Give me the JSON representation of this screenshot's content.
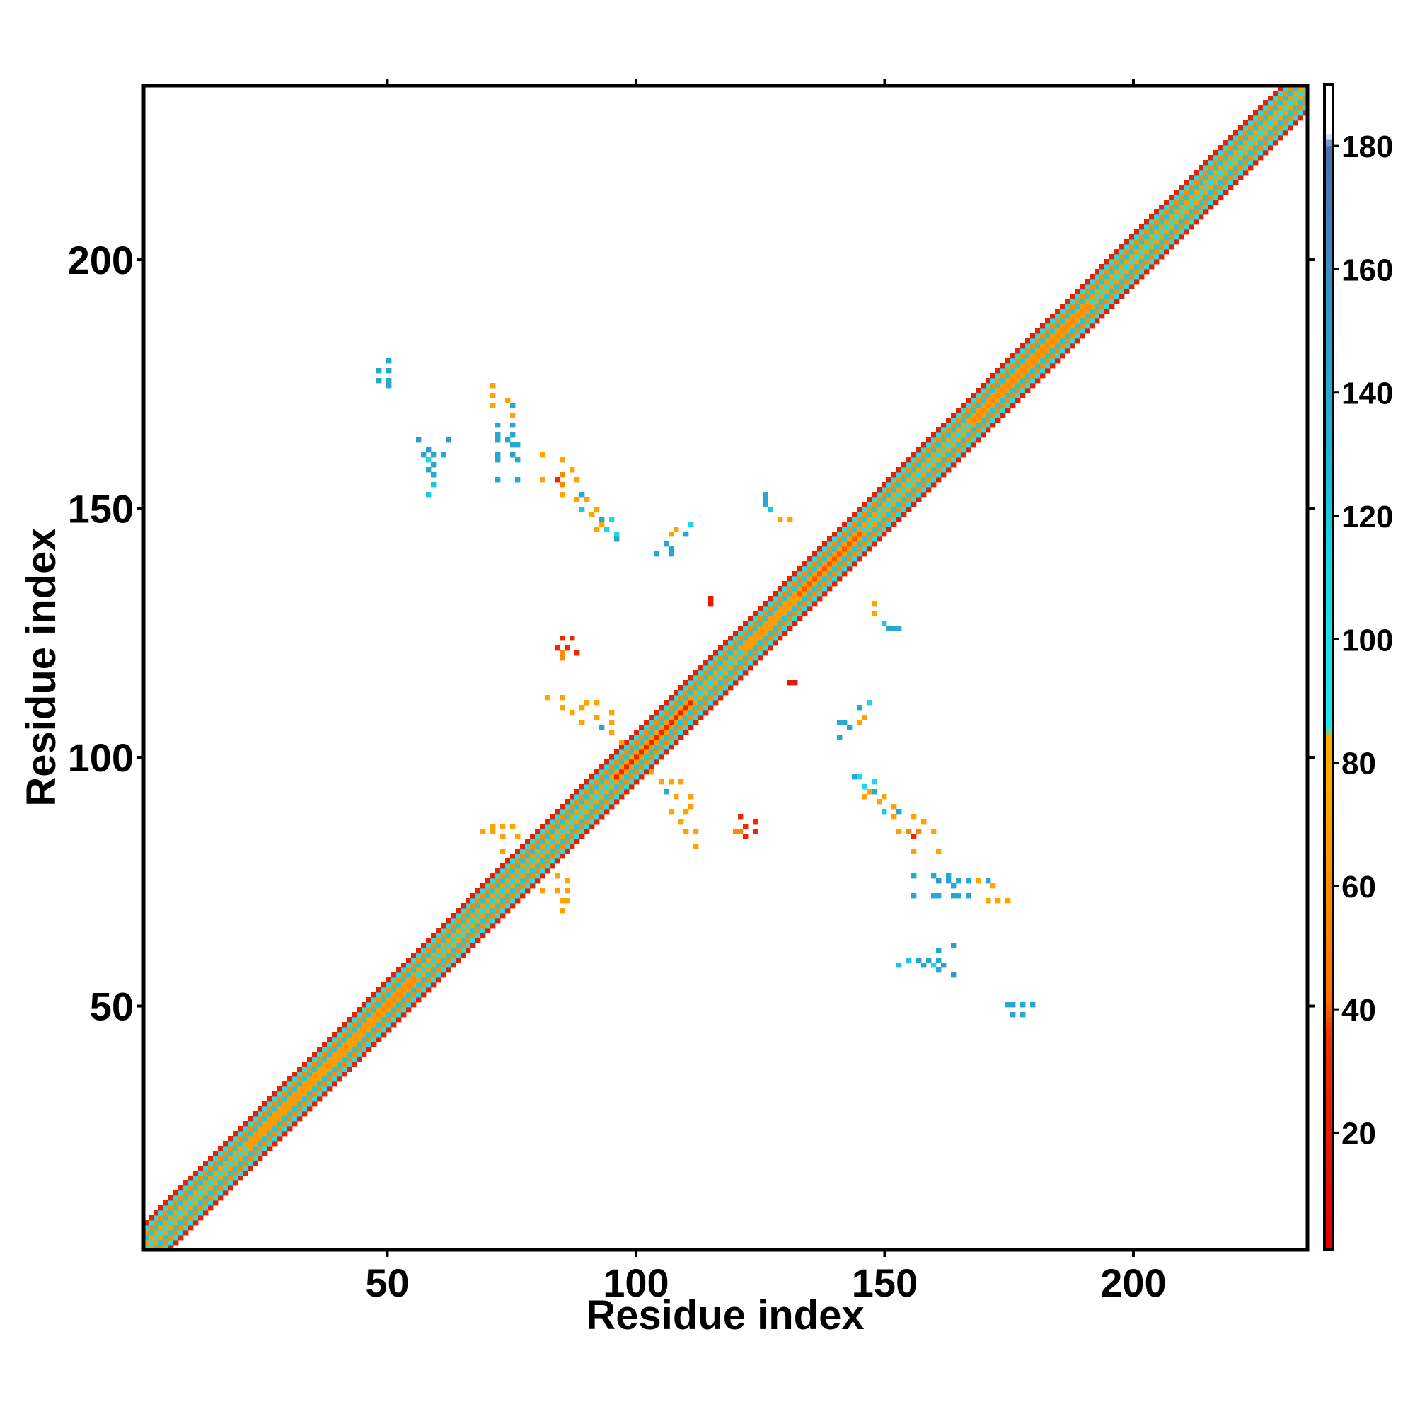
{
  "chart_data": {
    "type": "heatmap",
    "title": "",
    "xlabel": "Residue index",
    "ylabel": "Residue index",
    "xlim": [
      1,
      235
    ],
    "ylim": [
      1,
      235
    ],
    "x_ticks": [
      50,
      100,
      150,
      200
    ],
    "y_ticks": [
      50,
      100,
      150,
      200
    ],
    "grid": false,
    "colorbar": {
      "range": [
        1,
        190
      ],
      "ticks": [
        20,
        40,
        60,
        80,
        100,
        120,
        140,
        160,
        180
      ],
      "stops": [
        {
          "value": 1,
          "color": "#e10000"
        },
        {
          "value": 20,
          "color": "#e31a00"
        },
        {
          "value": 36,
          "color": "#f03000"
        },
        {
          "value": 42,
          "color": "#ff7000"
        },
        {
          "value": 60,
          "color": "#ff8a00"
        },
        {
          "value": 72,
          "color": "#ffa000"
        },
        {
          "value": 84,
          "color": "#ffab00"
        },
        {
          "value": 86,
          "color": "#22e4f0"
        },
        {
          "value": 112,
          "color": "#1ad6e8"
        },
        {
          "value": 130,
          "color": "#20b4d4"
        },
        {
          "value": 150,
          "color": "#2e9ccc"
        },
        {
          "value": 165,
          "color": "#3f83c0"
        },
        {
          "value": 180,
          "color": "#4a6fb0"
        },
        {
          "value": 182,
          "color": "#ffffff"
        },
        {
          "value": 190,
          "color": "#ffffff"
        }
      ]
    },
    "diagonal_band": {
      "from": 1,
      "to": 235,
      "profile": [
        {
          "offset": 0,
          "value": 120
        },
        {
          "offset": 1,
          "value": 70
        },
        {
          "offset": 2,
          "value": 120
        },
        {
          "offset": 3,
          "value": 60
        },
        {
          "offset": 4,
          "value": 95
        },
        {
          "offset": 5,
          "value": 25
        }
      ]
    },
    "segment_colors": [
      {
        "from": 1,
        "to": 22,
        "value": 100
      },
      {
        "from": 22,
        "to": 48,
        "value": 70
      },
      {
        "from": 48,
        "to": 56,
        "value": 60
      },
      {
        "from": 56,
        "to": 70,
        "value": 105
      },
      {
        "from": 70,
        "to": 84,
        "value": 110
      },
      {
        "from": 84,
        "to": 96,
        "value": 100
      },
      {
        "from": 96,
        "to": 112,
        "value": 30
      },
      {
        "from": 112,
        "to": 122,
        "value": 105
      },
      {
        "from": 122,
        "to": 133,
        "value": 70
      },
      {
        "from": 133,
        "to": 146,
        "value": 40
      },
      {
        "from": 146,
        "to": 168,
        "value": 100
      },
      {
        "from": 168,
        "to": 192,
        "value": 60
      },
      {
        "from": 192,
        "to": 235,
        "value": 95
      }
    ],
    "off_diagonal_contacts": [
      {
        "x": 48,
        "y": 176,
        "value": 140
      },
      {
        "x": 50,
        "y": 178,
        "value": 140
      },
      {
        "x": 50,
        "y": 175,
        "value": 140
      },
      {
        "x": 57,
        "y": 161,
        "value": 140
      },
      {
        "x": 59,
        "y": 161,
        "value": 140
      },
      {
        "x": 61,
        "y": 161,
        "value": 140
      },
      {
        "x": 58,
        "y": 158,
        "value": 140
      },
      {
        "x": 59,
        "y": 157,
        "value": 160
      },
      {
        "x": 59,
        "y": 155,
        "value": 120
      },
      {
        "x": 58,
        "y": 153,
        "value": 120
      },
      {
        "x": 71,
        "y": 173,
        "value": 75
      },
      {
        "x": 71,
        "y": 171,
        "value": 75
      },
      {
        "x": 75,
        "y": 169,
        "value": 75
      },
      {
        "x": 72,
        "y": 165,
        "value": 140
      },
      {
        "x": 74,
        "y": 164,
        "value": 140
      },
      {
        "x": 75,
        "y": 163,
        "value": 140
      },
      {
        "x": 72,
        "y": 161,
        "value": 140
      },
      {
        "x": 75,
        "y": 161,
        "value": 150
      },
      {
        "x": 72,
        "y": 156,
        "value": 140
      },
      {
        "x": 76,
        "y": 156,
        "value": 140
      },
      {
        "x": 81,
        "y": 156,
        "value": 75
      },
      {
        "x": 84,
        "y": 156,
        "value": 30
      },
      {
        "x": 85,
        "y": 155,
        "value": 60
      },
      {
        "x": 85,
        "y": 153,
        "value": 75
      },
      {
        "x": 88,
        "y": 152,
        "value": 75
      },
      {
        "x": 89,
        "y": 150,
        "value": 120
      },
      {
        "x": 91,
        "y": 149,
        "value": 75
      },
      {
        "x": 93,
        "y": 148,
        "value": 140
      },
      {
        "x": 94,
        "y": 146,
        "value": 110
      },
      {
        "x": 92,
        "y": 146,
        "value": 75
      },
      {
        "x": 96,
        "y": 144,
        "value": 140
      },
      {
        "x": 104,
        "y": 141,
        "value": 140
      },
      {
        "x": 107,
        "y": 141,
        "value": 140
      },
      {
        "x": 107,
        "y": 145,
        "value": 75
      },
      {
        "x": 110,
        "y": 145,
        "value": 140
      },
      {
        "x": 126,
        "y": 152,
        "value": 140
      },
      {
        "x": 127,
        "y": 150,
        "value": 120
      },
      {
        "x": 131,
        "y": 148,
        "value": 75
      },
      {
        "x": 115,
        "y": 131,
        "value": 20
      },
      {
        "x": 132,
        "y": 115,
        "value": 20
      },
      {
        "x": 84,
        "y": 122,
        "value": 30
      },
      {
        "x": 85,
        "y": 120,
        "value": 60
      },
      {
        "x": 88,
        "y": 121,
        "value": 30
      },
      {
        "x": 82,
        "y": 112,
        "value": 75
      },
      {
        "x": 85,
        "y": 112,
        "value": 75
      },
      {
        "x": 85,
        "y": 110,
        "value": 75
      },
      {
        "x": 87,
        "y": 109,
        "value": 75
      },
      {
        "x": 89,
        "y": 110,
        "value": 75
      },
      {
        "x": 89,
        "y": 107,
        "value": 75
      },
      {
        "x": 103,
        "y": 97,
        "value": 75
      },
      {
        "x": 105,
        "y": 95,
        "value": 75
      },
      {
        "x": 107,
        "y": 95,
        "value": 75
      },
      {
        "x": 109,
        "y": 95,
        "value": 75
      },
      {
        "x": 108,
        "y": 92,
        "value": 75
      },
      {
        "x": 111,
        "y": 92,
        "value": 75
      },
      {
        "x": 111,
        "y": 90,
        "value": 75
      },
      {
        "x": 106,
        "y": 93,
        "value": 140
      },
      {
        "x": 122,
        "y": 86,
        "value": 30
      },
      {
        "x": 124,
        "y": 85,
        "value": 30
      },
      {
        "x": 121,
        "y": 85,
        "value": 60
      },
      {
        "x": 124,
        "y": 87,
        "value": 30
      },
      {
        "x": 71,
        "y": 86,
        "value": 75
      },
      {
        "x": 73,
        "y": 86,
        "value": 75
      },
      {
        "x": 75,
        "y": 86,
        "value": 75
      },
      {
        "x": 76,
        "y": 84,
        "value": 75
      },
      {
        "x": 81,
        "y": 73,
        "value": 75
      },
      {
        "x": 84,
        "y": 73,
        "value": 75
      },
      {
        "x": 85,
        "y": 71,
        "value": 75
      },
      {
        "x": 85,
        "y": 69,
        "value": 75
      },
      {
        "x": 148,
        "y": 129,
        "value": 75
      },
      {
        "x": 151,
        "y": 126,
        "value": 140
      },
      {
        "x": 153,
        "y": 126,
        "value": 140
      },
      {
        "x": 142,
        "y": 107,
        "value": 140
      },
      {
        "x": 143,
        "y": 106,
        "value": 140
      },
      {
        "x": 146,
        "y": 108,
        "value": 75
      },
      {
        "x": 147,
        "y": 111,
        "value": 110
      },
      {
        "x": 145,
        "y": 96,
        "value": 110
      },
      {
        "x": 148,
        "y": 95,
        "value": 110
      },
      {
        "x": 147,
        "y": 93,
        "value": 75
      },
      {
        "x": 150,
        "y": 92,
        "value": 75
      },
      {
        "x": 152,
        "y": 90,
        "value": 75
      },
      {
        "x": 153,
        "y": 89,
        "value": 140
      },
      {
        "x": 156,
        "y": 88,
        "value": 75
      },
      {
        "x": 158,
        "y": 87,
        "value": 75
      },
      {
        "x": 157,
        "y": 85,
        "value": 60
      },
      {
        "x": 160,
        "y": 85,
        "value": 75
      },
      {
        "x": 161,
        "y": 81,
        "value": 75
      },
      {
        "x": 160,
        "y": 76,
        "value": 140
      },
      {
        "x": 163,
        "y": 76,
        "value": 140
      },
      {
        "x": 165,
        "y": 75,
        "value": 140
      },
      {
        "x": 167,
        "y": 75,
        "value": 140
      },
      {
        "x": 171,
        "y": 75,
        "value": 140
      },
      {
        "x": 172,
        "y": 74,
        "value": 75
      },
      {
        "x": 160,
        "y": 72,
        "value": 140
      },
      {
        "x": 164,
        "y": 72,
        "value": 140
      },
      {
        "x": 167,
        "y": 72,
        "value": 140
      },
      {
        "x": 171,
        "y": 71,
        "value": 75
      },
      {
        "x": 175,
        "y": 71,
        "value": 75
      },
      {
        "x": 157,
        "y": 59,
        "value": 140
      },
      {
        "x": 159,
        "y": 59,
        "value": 140
      },
      {
        "x": 160,
        "y": 58,
        "value": 110
      },
      {
        "x": 162,
        "y": 58,
        "value": 150
      },
      {
        "x": 164,
        "y": 62,
        "value": 150
      },
      {
        "x": 164,
        "y": 56,
        "value": 150
      },
      {
        "x": 176,
        "y": 50,
        "value": 140
      },
      {
        "x": 178,
        "y": 48,
        "value": 140
      },
      {
        "x": 180,
        "y": 50,
        "value": 140
      }
    ]
  }
}
